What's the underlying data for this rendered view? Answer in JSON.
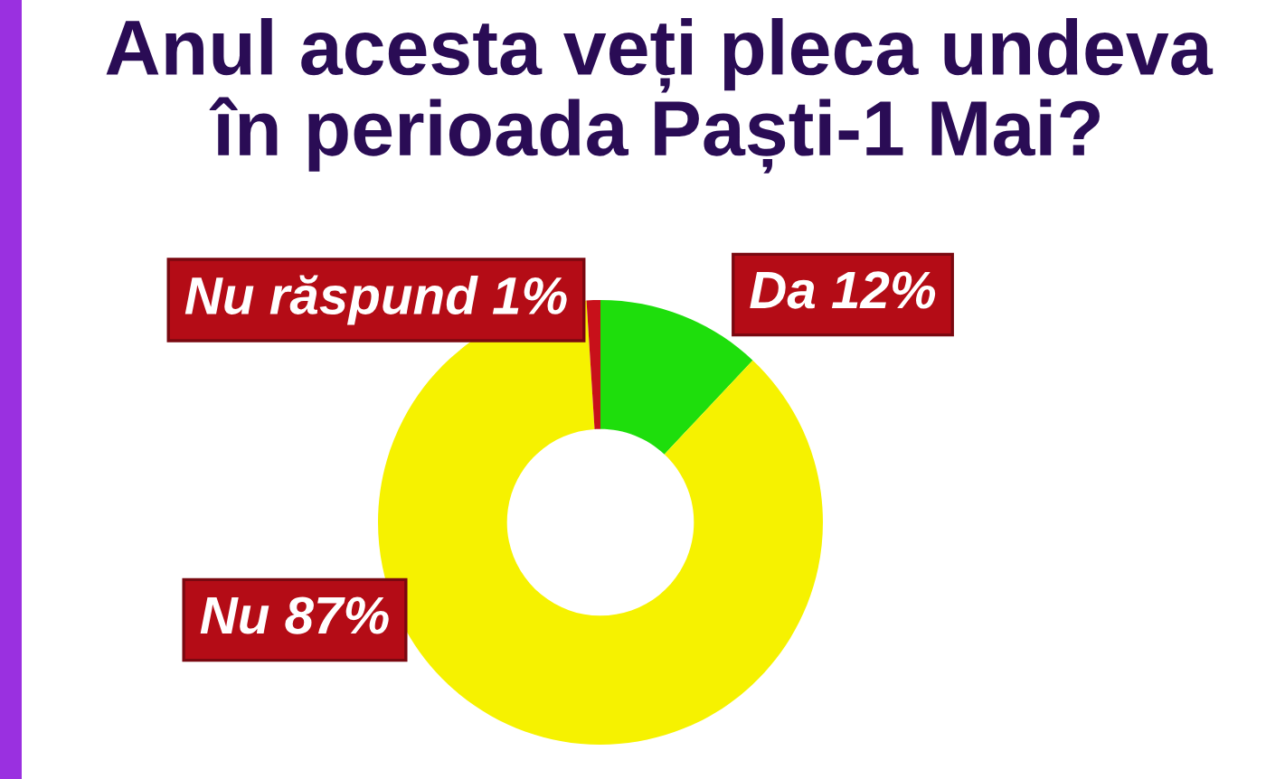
{
  "chart_data": {
    "type": "donut",
    "title": "Anul acesta veți pleca undeva\nîn perioada Paști-1 Mai?",
    "categories": [
      "Da",
      "Nu",
      "Nu răspund"
    ],
    "values": [
      12,
      87,
      1
    ],
    "colors": [
      "#1ede0c",
      "#f6f200",
      "#c8101a"
    ],
    "value_labels": [
      "12%",
      "87%",
      "1%"
    ]
  }
}
